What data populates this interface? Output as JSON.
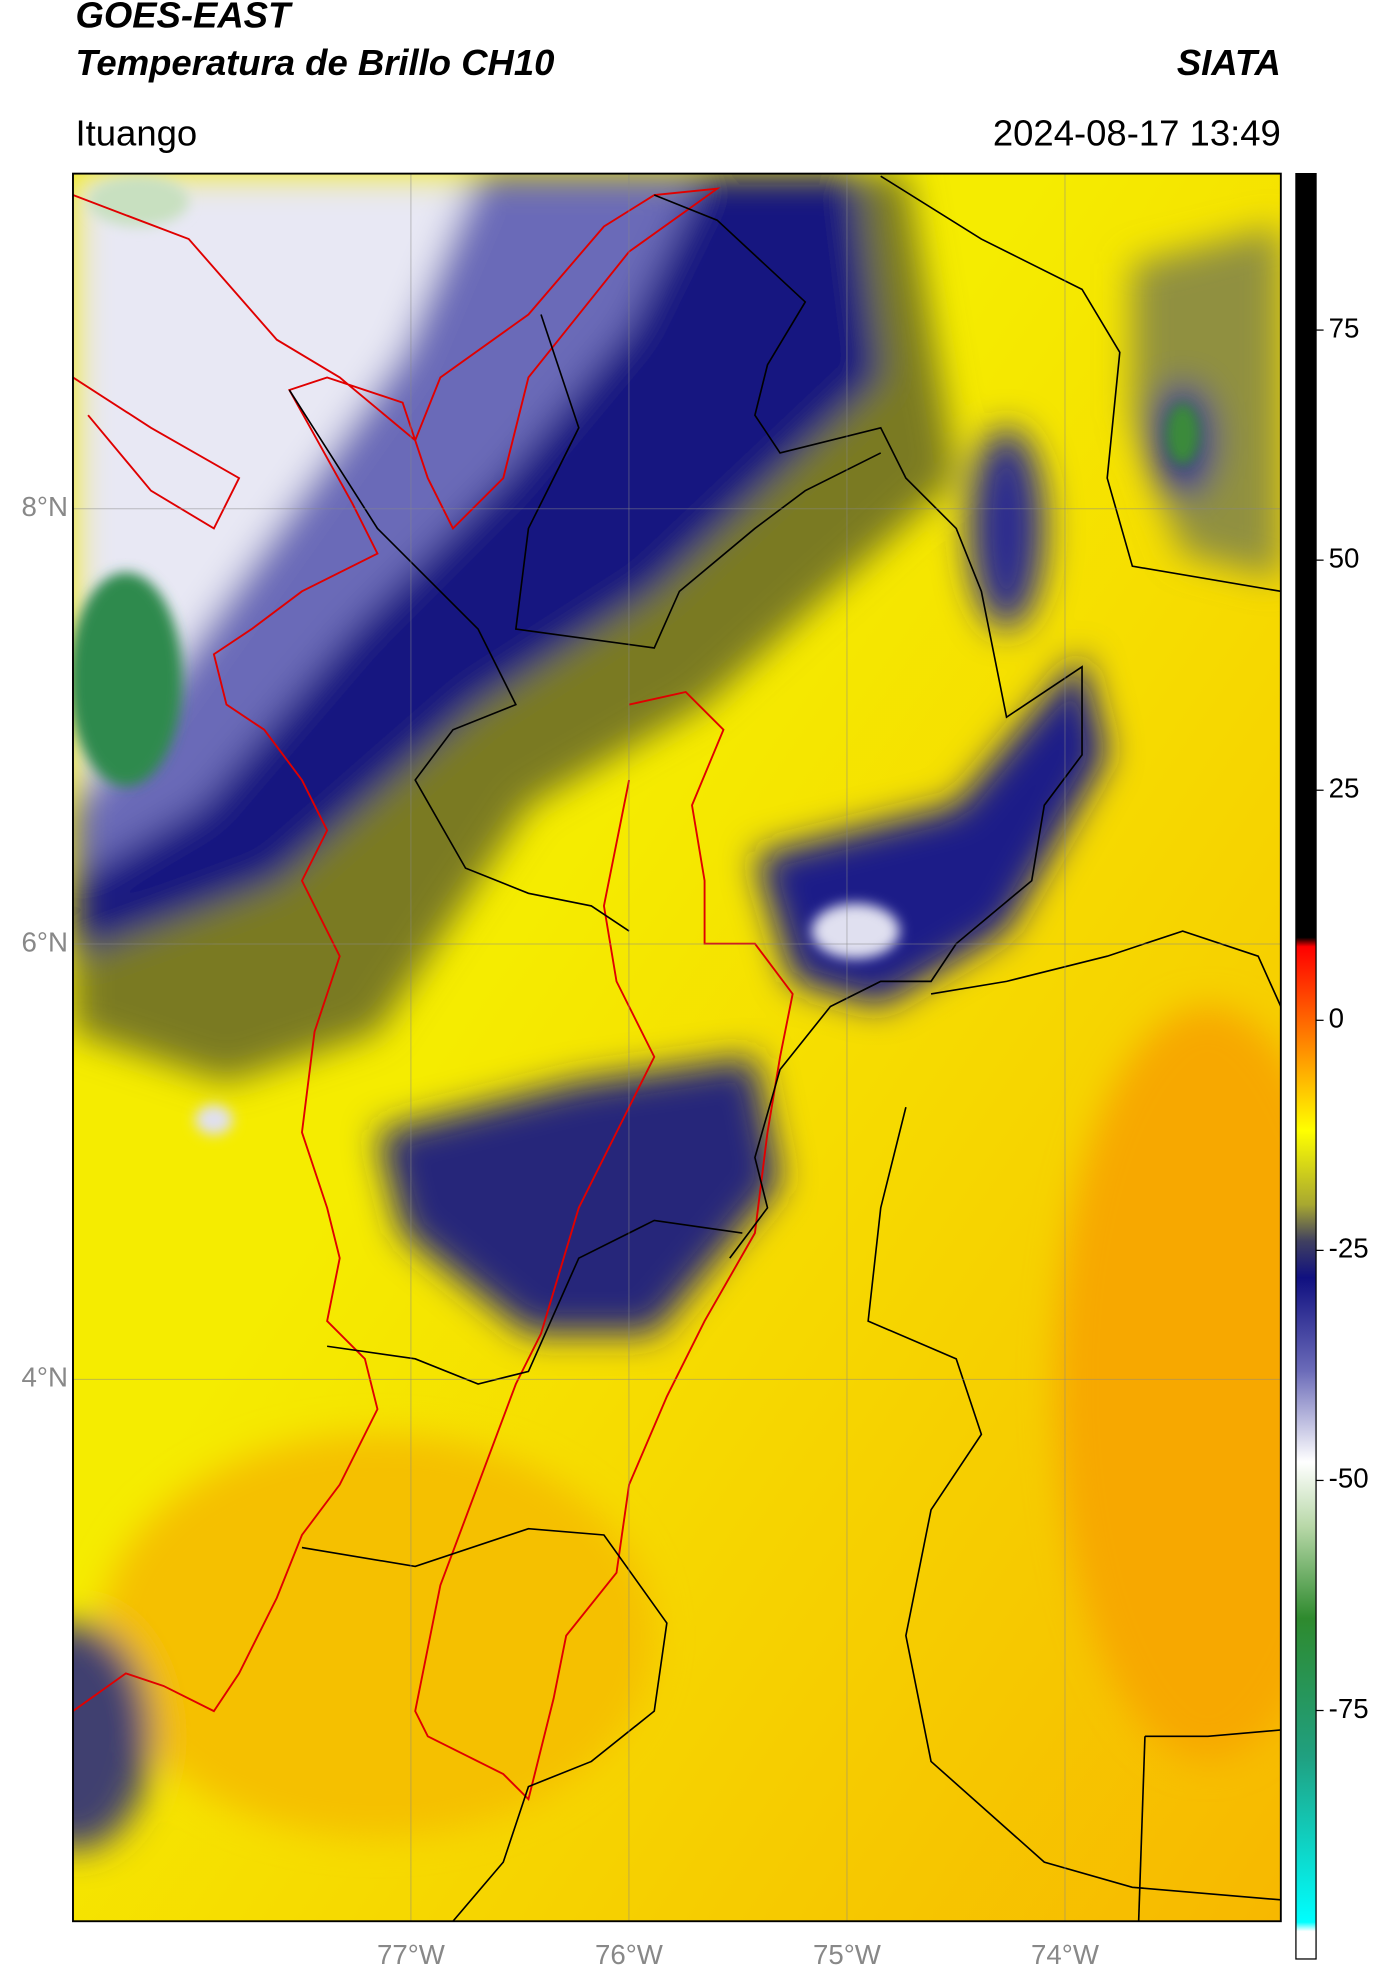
{
  "header": {
    "satellite": "GOES-EAST",
    "product": "Temperatura de Brillo CH10",
    "source": "SIATA",
    "location": "Ituango",
    "timestamp": "2024-08-17 13:49"
  },
  "map": {
    "xlim": [
      -78.55,
      -73.01
    ],
    "ylim": [
      1.51,
      9.54
    ],
    "xticks": [
      {
        "value": -77,
        "label": "77°W"
      },
      {
        "value": -76,
        "label": "76°W"
      },
      {
        "value": -75,
        "label": "75°W"
      },
      {
        "value": -74,
        "label": "74°W"
      }
    ],
    "yticks": [
      {
        "value": 8,
        "label": "8°N"
      },
      {
        "value": 6,
        "label": "6°N"
      },
      {
        "value": 4,
        "label": "4°N"
      }
    ],
    "grid": true
  },
  "colorbar": {
    "clim": [
      -102,
      92
    ],
    "ticks": [
      75,
      50,
      25,
      0,
      -25,
      -50,
      -75
    ],
    "colormap": [
      {
        "value": 92,
        "color": "#000000"
      },
      {
        "value": 9,
        "color": "#000000"
      },
      {
        "value": 8,
        "color": "#ff0000"
      },
      {
        "value": -2,
        "color": "#ff8000"
      },
      {
        "value": -12,
        "color": "#ffff00"
      },
      {
        "value": -20,
        "color": "#a8a830"
      },
      {
        "value": -24,
        "color": "#404060"
      },
      {
        "value": -28,
        "color": "#101080"
      },
      {
        "value": -38,
        "color": "#6a6ab8"
      },
      {
        "value": -48,
        "color": "#ffffff"
      },
      {
        "value": -55,
        "color": "#b8d8a8"
      },
      {
        "value": -65,
        "color": "#2e8a2e"
      },
      {
        "value": -80,
        "color": "#20a080"
      },
      {
        "value": -98,
        "color": "#00ffff"
      },
      {
        "value": -99,
        "color": "#ffffff"
      },
      {
        "value": -102,
        "color": "#ffffff"
      }
    ]
  }
}
